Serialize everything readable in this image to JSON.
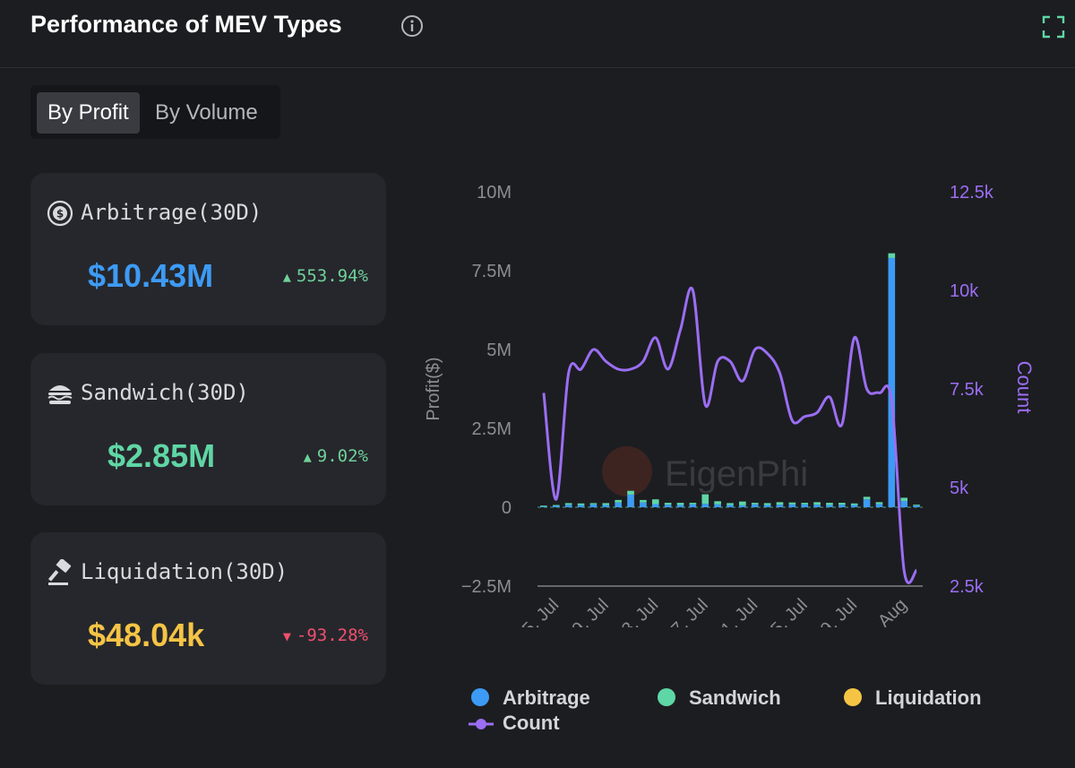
{
  "header": {
    "title": "Performance of MEV Types",
    "info_icon": "info-circle-icon",
    "expand_icon": "expand-icon"
  },
  "toggle": {
    "options": [
      "By Profit",
      "By Volume"
    ],
    "selected": "By Profit"
  },
  "cards": [
    {
      "icon": "dollar-cycle-icon",
      "label": "Arbitrage(30D)",
      "value": "$10.43M",
      "change": "553.94%",
      "direction": "up",
      "value_color": "#3d9bf5",
      "change_color": "#6fd19a"
    },
    {
      "icon": "sandwich-icon",
      "label": "Sandwich(30D)",
      "value": "$2.85M",
      "change": "9.02%",
      "direction": "up",
      "value_color": "#5fd6a5",
      "change_color": "#6fd19a"
    },
    {
      "icon": "gavel-icon",
      "label": "Liquidation(30D)",
      "value": "$48.04k",
      "change": "-93.28%",
      "direction": "down",
      "value_color": "#f5c445",
      "change_color": "#f0506e"
    }
  ],
  "watermark": "EigenPhi",
  "colors": {
    "arbitrage": "#3d9bf5",
    "sandwich": "#5fd6a5",
    "liquidation": "#f5c445",
    "count": "#9b6ef3",
    "axis_text": "#8b8d92"
  },
  "chart_data": {
    "type": "bar",
    "title": "",
    "ylabel": "Profit($)",
    "y2label": "Count",
    "ylim": [
      -2500000,
      10000000
    ],
    "y2lim": [
      2500,
      12500
    ],
    "yticks": [
      "10M",
      "7.5M",
      "5M",
      "2.5M",
      "0",
      "−2.5M"
    ],
    "y2ticks": [
      "12.5k",
      "10k",
      "7.5k",
      "5k",
      "2.5k"
    ],
    "xticks": [
      "5. Jul",
      "9. Jul",
      "13. Jul",
      "17. Jul",
      "21. Jul",
      "25. Jul",
      "29. Jul",
      "2. Aug"
    ],
    "x": [
      "4 Jul",
      "5 Jul",
      "6 Jul",
      "7 Jul",
      "8 Jul",
      "9 Jul",
      "10 Jul",
      "11 Jul",
      "12 Jul",
      "13 Jul",
      "14 Jul",
      "15 Jul",
      "16 Jul",
      "17 Jul",
      "18 Jul",
      "19 Jul",
      "20 Jul",
      "21 Jul",
      "22 Jul",
      "23 Jul",
      "24 Jul",
      "25 Jul",
      "26 Jul",
      "27 Jul",
      "28 Jul",
      "29 Jul",
      "30 Jul",
      "31 Jul",
      "1 Aug",
      "2 Aug",
      "3 Aug"
    ],
    "series": [
      {
        "name": "Arbitrage",
        "kind": "bar",
        "values": [
          30000,
          50000,
          80000,
          70000,
          90000,
          70000,
          150000,
          400000,
          150000,
          100000,
          80000,
          70000,
          90000,
          110000,
          90000,
          70000,
          60000,
          90000,
          70000,
          80000,
          90000,
          90000,
          80000,
          70000,
          80000,
          70000,
          250000,
          100000,
          7900000,
          200000,
          50000
        ]
      },
      {
        "name": "Sandwich",
        "kind": "bar",
        "values": [
          20000,
          20000,
          50000,
          50000,
          40000,
          60000,
          80000,
          120000,
          80000,
          150000,
          60000,
          70000,
          50000,
          300000,
          100000,
          60000,
          120000,
          50000,
          60000,
          80000,
          60000,
          50000,
          80000,
          70000,
          60000,
          50000,
          80000,
          60000,
          150000,
          100000,
          30000
        ]
      },
      {
        "name": "Liquidation",
        "kind": "bar",
        "values": [
          0,
          0,
          0,
          0,
          0,
          0,
          0,
          0,
          0,
          0,
          0,
          0,
          0,
          0,
          0,
          0,
          0,
          0,
          0,
          0,
          0,
          0,
          0,
          0,
          0,
          0,
          0,
          0,
          0,
          0,
          0
        ]
      },
      {
        "name": "Count",
        "kind": "line",
        "values": [
          7400,
          4700,
          7900,
          8000,
          8500,
          8200,
          8000,
          8000,
          8200,
          8800,
          8000,
          9000,
          10000,
          7100,
          8200,
          8200,
          7700,
          8500,
          8400,
          7900,
          6700,
          6800,
          6900,
          7300,
          6600,
          8800,
          7500,
          7400,
          7200,
          2900,
          2900
        ]
      }
    ],
    "legend": [
      "Arbitrage",
      "Sandwich",
      "Liquidation",
      "Count"
    ],
    "legend_position": "bottom",
    "grid": false
  }
}
